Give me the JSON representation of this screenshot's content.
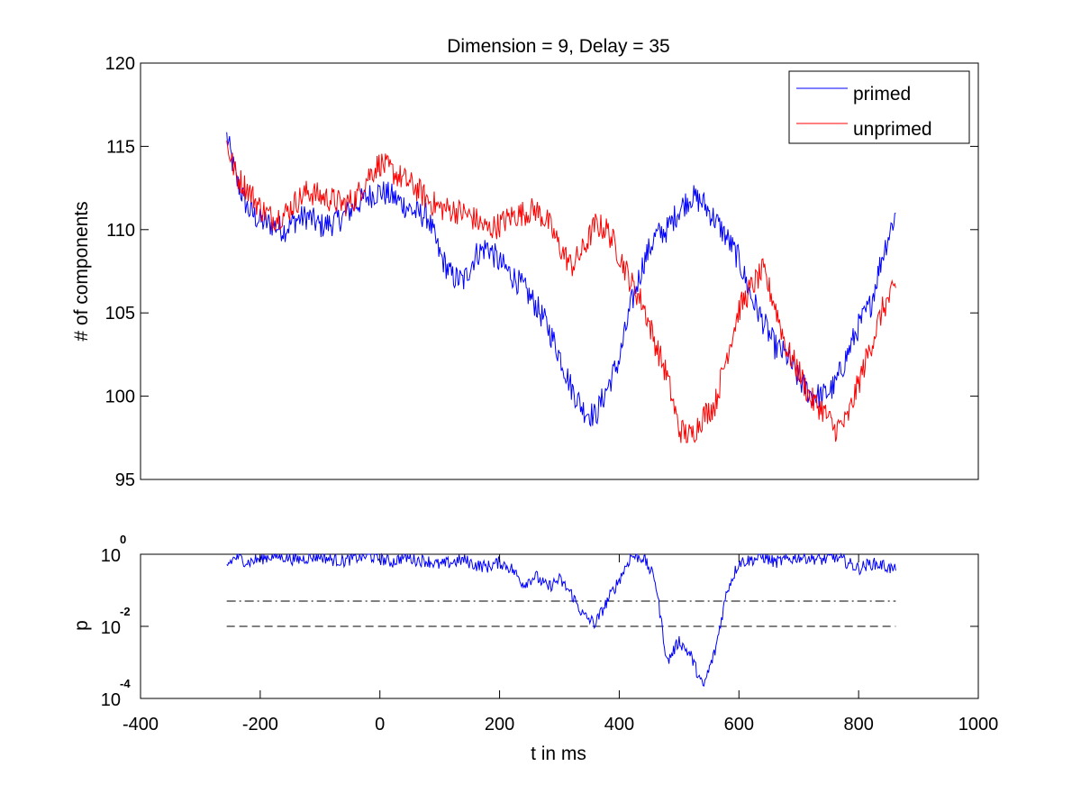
{
  "chart_data": [
    {
      "type": "line",
      "title": "Dimension  = 9, Delay = 35",
      "xlabel": "",
      "ylabel": "# of components",
      "xlim": [
        -400,
        1000
      ],
      "ylim": [
        95,
        120
      ],
      "xticks": [],
      "yticks": [
        "95",
        "100",
        "105",
        "110",
        "115",
        "120"
      ],
      "grid": false,
      "legend": {
        "position": "top-right",
        "entries": [
          "primed",
          "unprimed"
        ]
      },
      "x": [
        -256,
        -240,
        -220,
        -200,
        -180,
        -160,
        -140,
        -120,
        -100,
        -80,
        -60,
        -40,
        -20,
        0,
        20,
        40,
        60,
        80,
        100,
        120,
        140,
        160,
        180,
        200,
        220,
        240,
        260,
        280,
        300,
        320,
        340,
        360,
        380,
        400,
        420,
        440,
        460,
        480,
        500,
        520,
        540,
        560,
        580,
        600,
        620,
        640,
        660,
        680,
        700,
        720,
        740,
        760,
        780,
        800,
        820,
        840,
        862
      ],
      "series": [
        {
          "name": "primed",
          "color": "#0000ff",
          "values": [
            115.6,
            113.0,
            111.2,
            110.5,
            110.3,
            110.0,
            110.6,
            110.8,
            110.2,
            110.4,
            110.8,
            111.5,
            112.0,
            112.3,
            112.0,
            111.5,
            111.0,
            110.8,
            108.5,
            107.2,
            106.9,
            108.5,
            109.0,
            108.0,
            107.3,
            106.5,
            105.5,
            104.2,
            102.5,
            100.5,
            99.2,
            98.8,
            100.5,
            102.2,
            105.5,
            108.0,
            109.6,
            110.0,
            111.2,
            112.0,
            111.6,
            110.6,
            109.5,
            108.2,
            106.0,
            104.5,
            103.0,
            102.4,
            101.0,
            100.1,
            100.0,
            100.6,
            102.4,
            104.2,
            105.5,
            108.5,
            111.0
          ]
        },
        {
          "name": "unprimed",
          "color": "#ff0000",
          "values": [
            115.2,
            113.2,
            112.4,
            111.3,
            110.7,
            110.9,
            111.7,
            112.3,
            112.0,
            111.8,
            111.5,
            111.9,
            113.2,
            114.0,
            113.5,
            113.0,
            112.5,
            111.8,
            111.3,
            111.2,
            111.0,
            110.6,
            110.0,
            110.3,
            110.8,
            111.0,
            111.2,
            110.5,
            109.0,
            107.8,
            108.8,
            110.3,
            110.0,
            108.5,
            106.8,
            105.5,
            103.2,
            101.2,
            98.0,
            97.6,
            98.8,
            99.5,
            102.5,
            105.2,
            106.5,
            107.5,
            105.5,
            102.8,
            101.5,
            99.8,
            99.2,
            98.0,
            98.5,
            100.8,
            103.0,
            105.2,
            106.5
          ]
        }
      ]
    },
    {
      "type": "line",
      "title": "",
      "xlabel": "t in ms",
      "ylabel": "p",
      "xlim": [
        -400,
        1000
      ],
      "ylim": [
        0.0001,
        1
      ],
      "yscale": "log",
      "xticks": [
        "-400",
        "-200",
        "0",
        "200",
        "400",
        "600",
        "800",
        "1000"
      ],
      "yticks": [
        {
          "base": "10",
          "exp": "-4",
          "value": 0.0001
        },
        {
          "base": "10",
          "exp": "-2",
          "value": 0.01
        },
        {
          "base": "10",
          "exp": "0",
          "value": 1
        }
      ],
      "grid": false,
      "x": [
        -256,
        -240,
        -220,
        -200,
        -180,
        -160,
        -140,
        -120,
        -100,
        -80,
        -60,
        -40,
        -20,
        0,
        20,
        40,
        60,
        80,
        100,
        120,
        140,
        160,
        180,
        200,
        220,
        240,
        260,
        280,
        300,
        320,
        340,
        360,
        380,
        400,
        420,
        440,
        460,
        480,
        500,
        520,
        540,
        560,
        580,
        600,
        620,
        640,
        660,
        680,
        700,
        720,
        740,
        760,
        780,
        800,
        820,
        840,
        862
      ],
      "series": [
        {
          "color": "#0000ff",
          "values": [
            0.5,
            0.85,
            0.6,
            0.75,
            0.9,
            0.85,
            0.7,
            0.8,
            0.9,
            0.7,
            0.65,
            0.8,
            0.9,
            0.75,
            0.6,
            0.85,
            0.7,
            0.65,
            0.5,
            0.6,
            0.7,
            0.5,
            0.45,
            0.6,
            0.4,
            0.15,
            0.25,
            0.12,
            0.2,
            0.08,
            0.02,
            0.012,
            0.05,
            0.2,
            0.9,
            0.8,
            0.2,
            0.001,
            0.004,
            0.0015,
            0.0002,
            0.002,
            0.1,
            0.6,
            0.7,
            0.85,
            0.6,
            0.7,
            0.85,
            0.8,
            0.7,
            0.85,
            0.6,
            0.4,
            0.55,
            0.5,
            0.35
          ]
        }
      ],
      "reference_lines": [
        {
          "style": "dash-dot",
          "value": 0.05,
          "x_range": [
            -256,
            862
          ]
        },
        {
          "style": "dashed",
          "value": 0.01,
          "x_range": [
            -256,
            862
          ]
        }
      ]
    }
  ]
}
